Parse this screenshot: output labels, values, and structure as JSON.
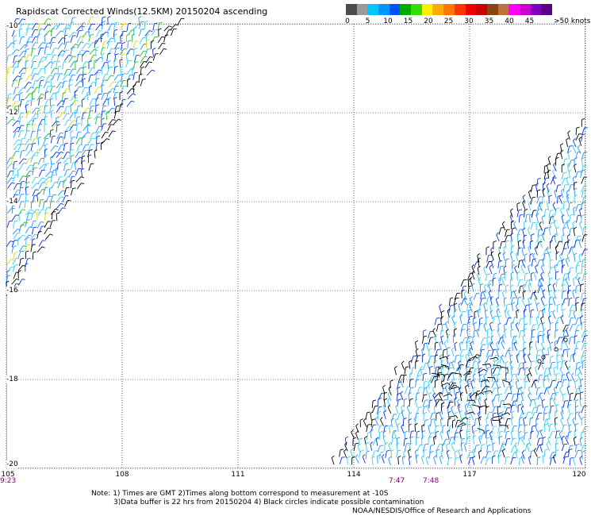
{
  "title": "Rapidscat Corrected Winds(12.5KM) 20150204 ascending",
  "legend": {
    "swatches": [
      {
        "color": "#4d4d4d"
      },
      {
        "color": "#9a9a9a"
      },
      {
        "color": "#00c8ff"
      },
      {
        "color": "#0096ff"
      },
      {
        "color": "#0050ff"
      },
      {
        "color": "#00aa00"
      },
      {
        "color": "#33dd00"
      },
      {
        "color": "#ffee00"
      },
      {
        "color": "#ffaa00"
      },
      {
        "color": "#ff7700"
      },
      {
        "color": "#ff3300"
      },
      {
        "color": "#ee0000"
      },
      {
        "color": "#c80000"
      },
      {
        "color": "#8b4513"
      },
      {
        "color": "#c07040"
      },
      {
        "color": "#ff00ff"
      },
      {
        "color": "#cc00cc"
      },
      {
        "color": "#8000c0"
      },
      {
        "color": "#5a008a"
      }
    ],
    "labels": [
      "0",
      "5",
      "10",
      "15",
      "20",
      "25",
      "30",
      "35",
      "40",
      "45",
      ">50 knots"
    ]
  },
  "map": {
    "lat_labels": [
      "-10",
      "-12",
      "-14",
      "-16",
      "-18",
      "-20"
    ],
    "lat_values": [
      -10,
      -12,
      -14,
      -16,
      -18,
      -20
    ],
    "lon_labels": [
      "105",
      "108",
      "111",
      "114",
      "117",
      "120"
    ],
    "lon_values": [
      105,
      108,
      111,
      114,
      117,
      120
    ],
    "lat_range": [
      -20,
      -10
    ],
    "lon_range": [
      105,
      120
    ]
  },
  "times": [
    "9:23",
    "7:47",
    "7:48"
  ],
  "notes": {
    "line1": "Note: 1) Times are GMT 2)Times along bottom correspond to measurement at -10S",
    "line2": "3)Data buffer is 22 hrs from 20150204 4) Black circles indicate possible contamination"
  },
  "credit": "NOAA/NESDIS/Office of Research and Applications",
  "swath_colors": {
    "lightblue": "#33ccee",
    "blue": "#1e90ff",
    "darkblue": "#0033dd",
    "black": "#000000",
    "green": "#22bb22",
    "yellow": "#dddd00"
  }
}
